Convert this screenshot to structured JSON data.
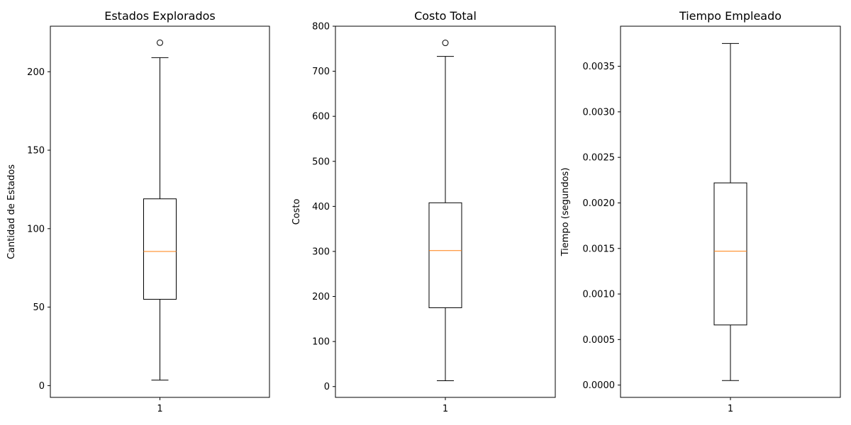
{
  "colors": {
    "box": "#000000",
    "median": "#ff7f0e",
    "background": "#ffffff"
  },
  "chart_data": [
    {
      "type": "boxplot",
      "title": "Estados Explorados",
      "xlabel": "",
      "ylabel": "Cantidad de Estados",
      "categories": [
        "1"
      ],
      "ylim": [
        -7.5,
        229
      ],
      "yticks": [
        0,
        50,
        100,
        150,
        200
      ],
      "yticklabels": [
        "0",
        "50",
        "100",
        "150",
        "200"
      ],
      "grid": false,
      "boxes": [
        {
          "label": "1",
          "whisker_low": 3.5,
          "q1": 55,
          "median": 85.5,
          "q3": 119,
          "whisker_high": 209,
          "outliers": [
            218.5
          ]
        }
      ]
    },
    {
      "type": "boxplot",
      "title": "Costo Total",
      "xlabel": "",
      "ylabel": "Costo",
      "categories": [
        "1"
      ],
      "ylim": [
        -24,
        800
      ],
      "yticks": [
        0,
        100,
        200,
        300,
        400,
        500,
        600,
        700,
        800
      ],
      "yticklabels": [
        "0",
        "100",
        "200",
        "300",
        "400",
        "500",
        "600",
        "700",
        "800"
      ],
      "grid": false,
      "boxes": [
        {
          "label": "1",
          "whisker_low": 13,
          "q1": 175,
          "median": 302,
          "q3": 408,
          "whisker_high": 733,
          "outliers": [
            763
          ]
        }
      ]
    },
    {
      "type": "boxplot",
      "title": "Tiempo Empleado",
      "xlabel": "",
      "ylabel": "Tiempo (segundos)",
      "categories": [
        "1"
      ],
      "ylim": [
        -0.000135,
        0.00394
      ],
      "yticks": [
        0,
        0.0005,
        0.001,
        0.0015,
        0.002,
        0.0025,
        0.003,
        0.0035
      ],
      "yticklabels": [
        "0.0000",
        "0.0005",
        "0.0010",
        "0.0015",
        "0.0020",
        "0.0025",
        "0.0030",
        "0.0035"
      ],
      "grid": false,
      "boxes": [
        {
          "label": "1",
          "whisker_low": 5e-05,
          "q1": 0.00066,
          "median": 0.00147,
          "q3": 0.00222,
          "whisker_high": 0.00375,
          "outliers": []
        }
      ]
    }
  ]
}
